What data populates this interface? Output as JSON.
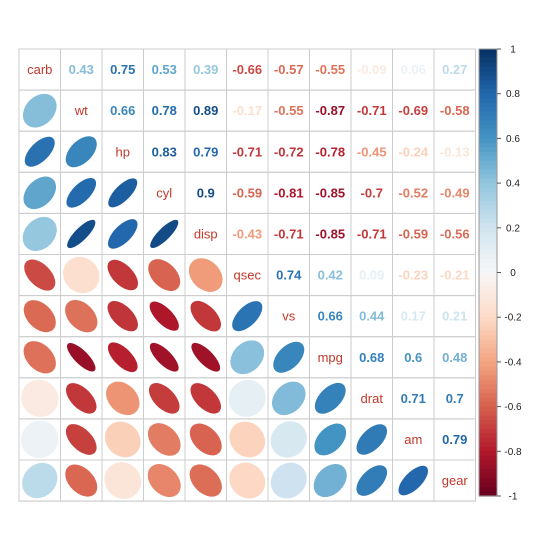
{
  "chart_data": {
    "type": "heatmap",
    "variables": [
      "carb",
      "wt",
      "hp",
      "cyl",
      "disp",
      "qsec",
      "vs",
      "mpg",
      "drat",
      "am",
      "gear"
    ],
    "matrix": [
      [
        1,
        0.43,
        0.75,
        0.53,
        0.39,
        -0.66,
        -0.57,
        -0.55,
        -0.09,
        0.06,
        0.27
      ],
      [
        0.43,
        1,
        0.66,
        0.78,
        0.89,
        -0.17,
        -0.55,
        -0.87,
        -0.71,
        -0.69,
        -0.58
      ],
      [
        0.75,
        0.66,
        1,
        0.83,
        0.79,
        -0.71,
        -0.72,
        -0.78,
        -0.45,
        -0.24,
        -0.13
      ],
      [
        0.53,
        0.78,
        0.83,
        1,
        0.9,
        -0.59,
        -0.81,
        -0.85,
        -0.7,
        -0.52,
        -0.49
      ],
      [
        0.39,
        0.89,
        0.79,
        0.9,
        1,
        -0.43,
        -0.71,
        -0.85,
        -0.71,
        -0.59,
        -0.56
      ],
      [
        -0.66,
        -0.17,
        -0.71,
        -0.59,
        -0.43,
        1,
        0.74,
        0.42,
        0.09,
        -0.23,
        -0.21
      ],
      [
        -0.57,
        -0.55,
        -0.72,
        -0.81,
        -0.71,
        0.74,
        1,
        0.66,
        0.44,
        0.17,
        0.21
      ],
      [
        -0.55,
        -0.87,
        -0.78,
        -0.85,
        -0.85,
        0.42,
        0.66,
        1,
        0.68,
        0.6,
        0.48
      ],
      [
        -0.09,
        -0.71,
        -0.45,
        -0.7,
        -0.71,
        0.09,
        0.44,
        0.68,
        1,
        0.71,
        0.7
      ],
      [
        0.06,
        -0.69,
        -0.24,
        -0.52,
        -0.59,
        -0.23,
        0.17,
        0.6,
        0.71,
        1,
        0.79
      ],
      [
        0.27,
        -0.58,
        -0.13,
        -0.49,
        -0.56,
        -0.21,
        0.21,
        0.48,
        0.7,
        0.79,
        1
      ]
    ],
    "upper_triangle": "number",
    "lower_triangle": "ellipse",
    "diagonal": "variable-name",
    "colorbar": {
      "range": [
        -1,
        1
      ],
      "ticks": [
        "1",
        "0.8",
        "0.6",
        "0.4",
        "0.2",
        "0",
        "-0.2",
        "-0.4",
        "-0.6",
        "-0.8",
        "-1"
      ],
      "placement": "right"
    },
    "colors": {
      "negative": "#67001F",
      "neutral": "#F7F7F7",
      "positive": "#053061",
      "label": "#C0392B",
      "grid": "#CCCCCC"
    },
    "grid": true
  }
}
